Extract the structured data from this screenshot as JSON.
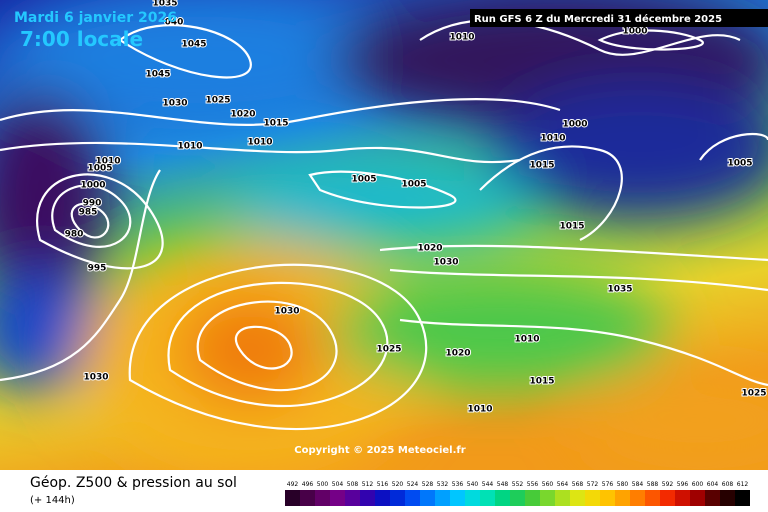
{
  "header": {
    "date": "Mardi 6 janvier 2026",
    "time": "7:00 locale",
    "run": "Run GFS 6 Z du Mercredi 31 décembre 2025"
  },
  "copyright": "Copyright © 2025 Meteociel.fr",
  "footer": {
    "title": "Géop. Z500 & pression au sol",
    "lead": "(+ 144h)"
  },
  "legend": {
    "labels": [
      "492",
      "496",
      "500",
      "504",
      "508",
      "512",
      "516",
      "520",
      "524",
      "528",
      "532",
      "536",
      "540",
      "544",
      "548",
      "552",
      "556",
      "560",
      "564",
      "568",
      "572",
      "576",
      "580",
      "584",
      "588",
      "592",
      "596",
      "600",
      "604",
      "608",
      "612"
    ]
  },
  "isobar_labels": [
    "1035",
    "040",
    "1045",
    "1045",
    "1030",
    "1025",
    "1020",
    "1015",
    "1010",
    "1010",
    "1010",
    "1005",
    "1000",
    "990",
    "985",
    "980",
    "995",
    "1005",
    "1005",
    "1010",
    "1000",
    "1000",
    "1010",
    "1015",
    "1005",
    "1015",
    "1020",
    "1030",
    "1035",
    "1030",
    "1025",
    "1020",
    "1010",
    "1015",
    "1010",
    "1030",
    "1025"
  ]
}
